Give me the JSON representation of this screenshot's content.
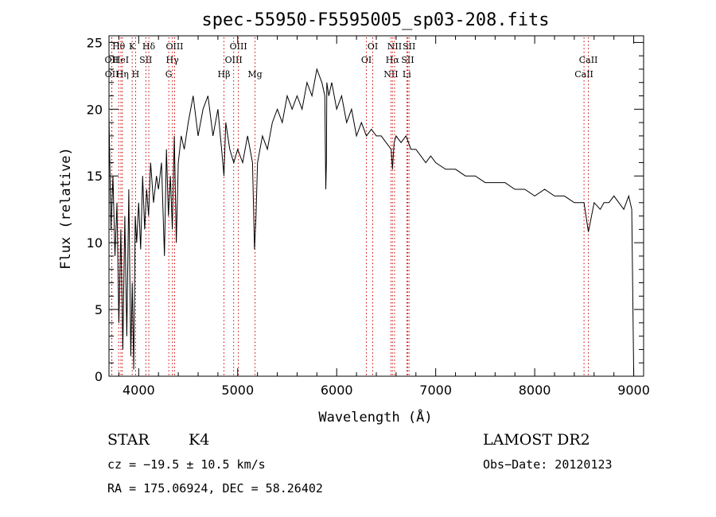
{
  "chart_data": {
    "type": "line",
    "title": "spec-55950-F5595005_sp03-208.fits",
    "xlabel": "Wavelength (Å)",
    "ylabel": "Flux (relative)",
    "xlim": [
      3700,
      9100
    ],
    "ylim": [
      0,
      25.5
    ],
    "x_ticks": [
      4000,
      5000,
      6000,
      7000,
      8000,
      9000
    ],
    "y_ticks": [
      0,
      5,
      10,
      15,
      20,
      25
    ],
    "grid": false,
    "line_color": "#000000",
    "marker_color": "#cc0000",
    "spectrum": {
      "x": [
        3700,
        3720,
        3740,
        3760,
        3780,
        3800,
        3820,
        3840,
        3860,
        3880,
        3900,
        3920,
        3935,
        3950,
        3965,
        3980,
        4000,
        4020,
        4040,
        4060,
        4080,
        4100,
        4120,
        4150,
        4180,
        4200,
        4230,
        4260,
        4280,
        4300,
        4320,
        4340,
        4360,
        4380,
        4400,
        4430,
        4460,
        4500,
        4550,
        4600,
        4650,
        4700,
        4750,
        4800,
        4850,
        4861,
        4880,
        4920,
        4960,
        5000,
        5050,
        5100,
        5150,
        5170,
        5185,
        5200,
        5250,
        5300,
        5350,
        5400,
        5450,
        5500,
        5550,
        5600,
        5650,
        5700,
        5750,
        5800,
        5850,
        5880,
        5890,
        5896,
        5900,
        5920,
        5950,
        6000,
        6050,
        6100,
        6150,
        6200,
        6250,
        6300,
        6350,
        6400,
        6450,
        6500,
        6550,
        6563,
        6580,
        6600,
        6650,
        6700,
        6750,
        6800,
        6850,
        6900,
        6950,
        7000,
        7100,
        7200,
        7300,
        7400,
        7500,
        7600,
        7700,
        7800,
        7900,
        8000,
        8100,
        8200,
        8300,
        8400,
        8498,
        8542,
        8600,
        8662,
        8700,
        8750,
        8800,
        8850,
        8900,
        8950,
        8980,
        9000
      ],
      "y": [
        19.5,
        11,
        15,
        9,
        13,
        4,
        11,
        2,
        12,
        3,
        14,
        1.5,
        7,
        0.5,
        12,
        10,
        13,
        9.5,
        15,
        11,
        14,
        12,
        16,
        13,
        15,
        14,
        16,
        9,
        17,
        12,
        15,
        11,
        18,
        10,
        16,
        18,
        17,
        19,
        21,
        18,
        20,
        21,
        18,
        20,
        16,
        15,
        19,
        17,
        16,
        17,
        16,
        18,
        16,
        9.5,
        12,
        16,
        18,
        17,
        19,
        20,
        19,
        21,
        20,
        21,
        20,
        22,
        21,
        23,
        22,
        21,
        14,
        16,
        22,
        21,
        22,
        20,
        21,
        19,
        20,
        18,
        19,
        18,
        18.5,
        18,
        18,
        17.5,
        17,
        15.5,
        17.5,
        18,
        17.5,
        18,
        17,
        17,
        16.5,
        16,
        16.5,
        16,
        15.5,
        15.5,
        15,
        15,
        14.5,
        14.5,
        14.5,
        14,
        14,
        13.5,
        14,
        13.5,
        13.5,
        13,
        13,
        10.8,
        13,
        12.5,
        13,
        13,
        13.5,
        13,
        12.5,
        13.5,
        12.5,
        0
      ]
    },
    "line_markers": [
      {
        "wavelength": 3727,
        "label": "OII",
        "row": 2
      },
      {
        "wavelength": 3729,
        "label": "OII",
        "row": 3
      },
      {
        "wavelength": 3798,
        "label": "Hθ",
        "row": 1
      },
      {
        "wavelength": 3820,
        "label": "HeI",
        "row": 2
      },
      {
        "wavelength": 3835,
        "label": "Hη",
        "row": 3
      },
      {
        "wavelength": 3934,
        "label": "K",
        "row": 1
      },
      {
        "wavelength": 3969,
        "label": "H",
        "row": 3
      },
      {
        "wavelength": 4072,
        "label": "SII",
        "row": 2
      },
      {
        "wavelength": 4102,
        "label": "Hδ",
        "row": 1
      },
      {
        "wavelength": 4304,
        "label": "G",
        "row": 3
      },
      {
        "wavelength": 4340,
        "label": "Hγ",
        "row": 2
      },
      {
        "wavelength": 4363,
        "label": "OIII",
        "row": 1
      },
      {
        "wavelength": 4861,
        "label": "Hβ",
        "row": 3
      },
      {
        "wavelength": 4959,
        "label": "OIII",
        "row": 2
      },
      {
        "wavelength": 5007,
        "label": "OIII",
        "row": 1
      },
      {
        "wavelength": 5175,
        "label": "Mg",
        "row": 3
      },
      {
        "wavelength": 6300,
        "label": "OI",
        "row": 2
      },
      {
        "wavelength": 6364,
        "label": "OI",
        "row": 1
      },
      {
        "wavelength": 6548,
        "label": "NII",
        "row": 3
      },
      {
        "wavelength": 6563,
        "label": "Hα",
        "row": 2
      },
      {
        "wavelength": 6584,
        "label": "NII",
        "row": 1
      },
      {
        "wavelength": 6708,
        "label": "Li",
        "row": 3
      },
      {
        "wavelength": 6717,
        "label": "SII",
        "row": 2
      },
      {
        "wavelength": 6731,
        "label": "SII",
        "row": 1
      },
      {
        "wavelength": 8498,
        "label": "CaII",
        "row": 3
      },
      {
        "wavelength": 8542,
        "label": "CaII",
        "row": 2
      }
    ]
  },
  "info": {
    "class": "STAR",
    "subclass": "K4",
    "survey": "LAMOST DR2",
    "redshift": "cz = −19.5 ± 10.5 km/s",
    "obs_date": "Obs−Date: 20120123",
    "coords": "RA = 175.06924, DEC =  58.26402"
  }
}
